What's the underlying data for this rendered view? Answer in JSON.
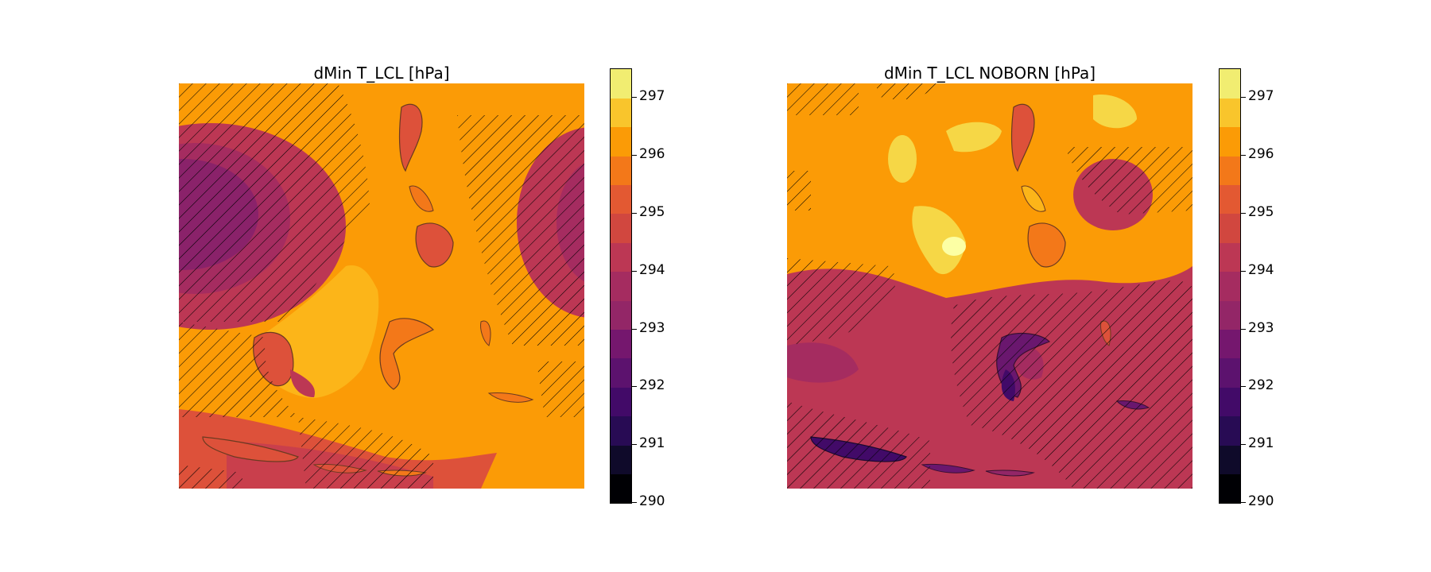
{
  "chart_data": [
    {
      "type": "heatmap",
      "title": "dMin T_LCL [hPa]",
      "colorbar": {
        "levels": [
          290,
          290.5,
          291,
          291.5,
          292,
          292.5,
          293,
          293.5,
          294,
          294.5,
          295,
          295.5,
          296,
          296.5,
          297,
          297.5
        ],
        "tick_labels": [
          "290",
          "291",
          "292",
          "293",
          "294",
          "295",
          "296",
          "297"
        ],
        "colors": [
          "#000004",
          "#160b39",
          "#420a68",
          "#6a176e",
          "#932667",
          "#bc3754",
          "#dd513a",
          "#f37819",
          "#fca50a",
          "#f6d746",
          "#fcffa4"
        ],
        "colormap": "inferno"
      },
      "hatching": "diagonal hatch marking significant regions",
      "background_level": 295.8
    },
    {
      "type": "heatmap",
      "title": "dMin T_LCL NOBORN [hPa]",
      "colorbar": {
        "levels": [
          290,
          290.5,
          291,
          291.5,
          292,
          292.5,
          293,
          293.5,
          294,
          294.5,
          295,
          295.5,
          296,
          296.5,
          297,
          297.5
        ],
        "tick_labels": [
          "290",
          "291",
          "292",
          "293",
          "294",
          "295",
          "296",
          "297"
        ],
        "colors": [
          "#000004",
          "#160b39",
          "#420a68",
          "#6a176e",
          "#932667",
          "#bc3754",
          "#dd513a",
          "#f37819",
          "#fca50a",
          "#f6d746",
          "#fcffa4"
        ],
        "colormap": "inferno"
      },
      "hatching": "diagonal hatch marking significant regions",
      "background_level": 295.8
    }
  ]
}
